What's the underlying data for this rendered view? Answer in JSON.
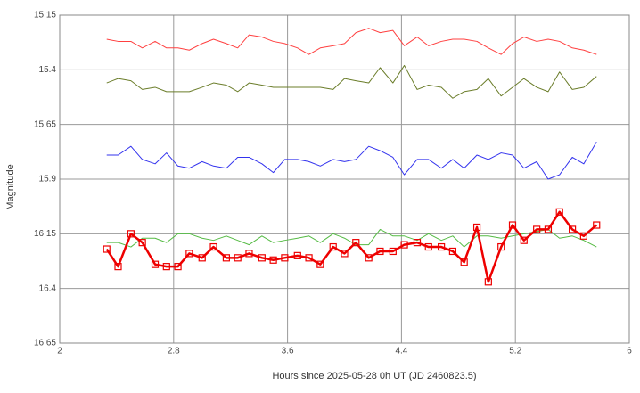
{
  "chart_data": {
    "type": "line",
    "x_label": "Hours since 2025-05-28 0h UT (JD 2460823.5)",
    "y_label": "Magnitude",
    "xlim": [
      2,
      6
    ],
    "xticks": [
      2,
      2.8,
      3.6,
      4.4,
      5.2,
      6
    ],
    "ylim": [
      16.65,
      15.15
    ],
    "yticks": [
      15.15,
      15.4,
      15.65,
      15.9,
      16.15,
      16.4,
      16.65
    ],
    "grid": true,
    "x": [
      2.33,
      2.41,
      2.5,
      2.58,
      2.67,
      2.75,
      2.83,
      2.91,
      3.0,
      3.08,
      3.17,
      3.25,
      3.33,
      3.42,
      3.5,
      3.58,
      3.67,
      3.75,
      3.83,
      3.92,
      4.0,
      4.08,
      4.17,
      4.25,
      4.34,
      4.42,
      4.51,
      4.59,
      4.68,
      4.76,
      4.84,
      4.93,
      5.01,
      5.1,
      5.18,
      5.26,
      5.35,
      5.43,
      5.51,
      5.6,
      5.68,
      5.77
    ],
    "series": [
      {
        "color": "#ff4040",
        "width": 1,
        "values": [
          15.26,
          15.27,
          15.27,
          15.3,
          15.27,
          15.3,
          15.3,
          15.31,
          15.28,
          15.26,
          15.28,
          15.3,
          15.24,
          15.25,
          15.27,
          15.28,
          15.3,
          15.33,
          15.3,
          15.29,
          15.28,
          15.23,
          15.21,
          15.23,
          15.22,
          15.29,
          15.25,
          15.29,
          15.27,
          15.26,
          15.26,
          15.27,
          15.3,
          15.33,
          15.28,
          15.25,
          15.27,
          15.26,
          15.27,
          15.3,
          15.31,
          15.33
        ]
      },
      {
        "color": "#6b7d2a",
        "width": 1,
        "values": [
          15.46,
          15.44,
          15.45,
          15.49,
          15.48,
          15.5,
          15.5,
          15.5,
          15.48,
          15.46,
          15.47,
          15.5,
          15.46,
          15.47,
          15.48,
          15.48,
          15.48,
          15.48,
          15.48,
          15.49,
          15.44,
          15.45,
          15.46,
          15.39,
          15.46,
          15.38,
          15.49,
          15.47,
          15.48,
          15.53,
          15.5,
          15.49,
          15.44,
          15.52,
          15.48,
          15.44,
          15.48,
          15.5,
          15.41,
          15.49,
          15.48,
          15.43
        ]
      },
      {
        "color": "#3333ee",
        "width": 1,
        "values": [
          15.79,
          15.79,
          15.75,
          15.81,
          15.83,
          15.78,
          15.84,
          15.85,
          15.82,
          15.84,
          15.85,
          15.8,
          15.8,
          15.83,
          15.87,
          15.81,
          15.81,
          15.82,
          15.84,
          15.81,
          15.82,
          15.81,
          15.75,
          15.77,
          15.8,
          15.88,
          15.81,
          15.81,
          15.85,
          15.81,
          15.85,
          15.79,
          15.81,
          15.78,
          15.79,
          15.85,
          15.82,
          15.9,
          15.88,
          15.8,
          15.83,
          15.73
        ]
      },
      {
        "color": "#55bb44",
        "width": 1,
        "values": [
          16.19,
          16.19,
          16.21,
          16.17,
          16.17,
          16.19,
          16.15,
          16.15,
          16.17,
          16.18,
          16.16,
          16.18,
          16.2,
          16.16,
          16.19,
          16.18,
          16.17,
          16.16,
          16.19,
          16.15,
          16.17,
          16.2,
          16.2,
          16.13,
          16.16,
          16.16,
          16.18,
          16.15,
          16.18,
          16.16,
          16.21,
          16.16,
          16.16,
          16.17,
          16.16,
          16.15,
          16.14,
          16.13,
          16.17,
          16.16,
          16.18,
          16.21
        ]
      },
      {
        "color": "#ee0000",
        "width": 2.5,
        "marker": "square",
        "values": [
          16.22,
          16.3,
          16.15,
          16.19,
          16.29,
          16.3,
          16.3,
          16.24,
          16.26,
          16.21,
          16.26,
          16.26,
          16.24,
          16.26,
          16.27,
          16.26,
          16.25,
          16.26,
          16.29,
          16.21,
          16.24,
          16.19,
          16.26,
          16.23,
          16.23,
          16.2,
          16.19,
          16.21,
          16.21,
          16.23,
          16.28,
          16.12,
          16.37,
          16.21,
          16.11,
          16.18,
          16.13,
          16.13,
          16.05,
          16.13,
          16.16,
          16.11
        ]
      }
    ]
  }
}
